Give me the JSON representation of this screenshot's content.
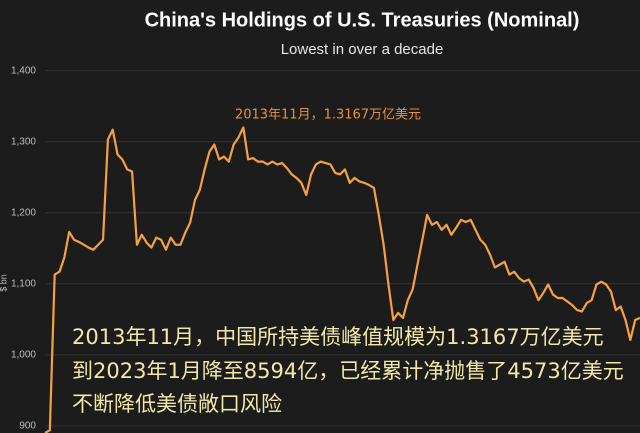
{
  "chart_data": {
    "type": "line",
    "title": "China's Holdings of U.S. Treasuries (Nominal)",
    "subtitle": "Lowest in over a decade",
    "y_label": "$ bn",
    "annotation": "2013年11月，1.3167万亿美元",
    "overlay_text": [
      "2013年11月，中国所持美债峰值规模为1.3167万亿美元",
      "到2023年1月降至8594亿，已经累计净抛售了4573亿美元",
      "不断降低美债敞口风险"
    ],
    "color": "#f5a142",
    "grid": true,
    "ylim": [
      890,
      1415
    ],
    "yticks": [
      {
        "value": 900,
        "label": "900"
      },
      {
        "value": 1000,
        "label": "1,000"
      },
      {
        "value": 1100,
        "label": "1,100"
      },
      {
        "value": 1200,
        "label": "1,200"
      },
      {
        "value": 1300,
        "label": "1,300"
      },
      {
        "value": 1400,
        "label": "1,400"
      }
    ],
    "values": [
      890,
      894,
      1113,
      1117,
      1137,
      1173,
      1162,
      1159,
      1155,
      1151,
      1148,
      1155,
      1162,
      1303,
      1317,
      1282,
      1275,
      1261,
      1258,
      1155,
      1169,
      1158,
      1151,
      1165,
      1162,
      1148,
      1165,
      1155,
      1155,
      1172,
      1186,
      1218,
      1232,
      1261,
      1286,
      1296,
      1275,
      1279,
      1272,
      1296,
      1306,
      1320,
      1275,
      1277,
      1272,
      1272,
      1268,
      1272,
      1268,
      1270,
      1263,
      1254,
      1249,
      1242,
      1225,
      1254,
      1268,
      1272,
      1270,
      1268,
      1256,
      1254,
      1261,
      1242,
      1249,
      1244,
      1242,
      1239,
      1235,
      1197,
      1155,
      1099,
      1049,
      1059,
      1052,
      1077,
      1092,
      1127,
      1162,
      1197,
      1183,
      1187,
      1176,
      1183,
      1169,
      1179,
      1190,
      1187,
      1190,
      1176,
      1162,
      1155,
      1141,
      1123,
      1127,
      1131,
      1113,
      1117,
      1108,
      1103,
      1106,
      1094,
      1077,
      1087,
      1099,
      1085,
      1080,
      1080,
      1075,
      1070,
      1063,
      1061,
      1073,
      1077,
      1099,
      1103,
      1099,
      1089,
      1063,
      1068,
      1049,
      1021,
      1049,
      1052
    ]
  }
}
